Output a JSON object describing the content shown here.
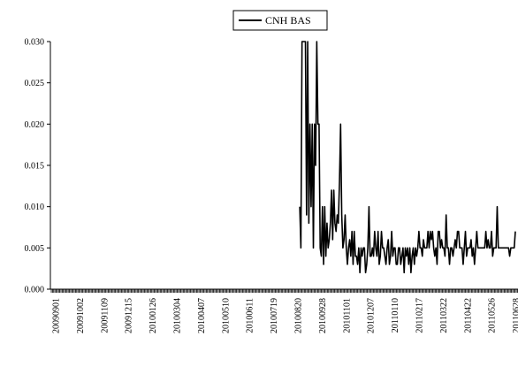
{
  "chart_data": {
    "type": "line",
    "title": "",
    "xlabel": "",
    "ylabel": "",
    "ylim": [
      0,
      0.03
    ],
    "y_ticks": [
      "0.000",
      "0.005",
      "0.010",
      "0.015",
      "0.020",
      "0.025",
      "0.030"
    ],
    "x_tick_labels": [
      "20090901",
      "20091002",
      "20091109",
      "20091215",
      "20100126",
      "20100304",
      "20100407",
      "20100510",
      "20100611",
      "20100719",
      "20100820",
      "20100928",
      "20101101",
      "20101207",
      "20110110",
      "20110217",
      "20110322",
      "20110422",
      "20110526",
      "20110628"
    ],
    "grid": false,
    "legend_position": "top-center",
    "series": [
      {
        "name": "CNH BAS",
        "color": "#000000",
        "start_date": "20100823",
        "values": [
          0.01,
          0.005,
          0.03,
          0.03,
          0.03,
          0.03,
          0.009,
          0.03,
          0.008,
          0.02,
          0.01,
          0.02,
          0.005,
          0.02,
          0.015,
          0.03,
          0.02,
          0.02,
          0.005,
          0.004,
          0.01,
          0.003,
          0.01,
          0.004,
          0.008,
          0.005,
          0.006,
          0.008,
          0.012,
          0.006,
          0.012,
          0.008,
          0.007,
          0.009,
          0.008,
          0.013,
          0.02,
          0.009,
          0.005,
          0.006,
          0.009,
          0.005,
          0.003,
          0.005,
          0.006,
          0.004,
          0.007,
          0.003,
          0.007,
          0.004,
          0.004,
          0.003,
          0.005,
          0.002,
          0.005,
          0.004,
          0.005,
          0.005,
          0.002,
          0.003,
          0.005,
          0.01,
          0.004,
          0.004,
          0.005,
          0.004,
          0.007,
          0.005,
          0.004,
          0.007,
          0.003,
          0.004,
          0.007,
          0.005,
          0.005,
          0.004,
          0.003,
          0.005,
          0.006,
          0.003,
          0.004,
          0.007,
          0.004,
          0.005,
          0.005,
          0.003,
          0.003,
          0.005,
          0.005,
          0.003,
          0.004,
          0.005,
          0.002,
          0.005,
          0.004,
          0.005,
          0.003,
          0.005,
          0.002,
          0.004,
          0.005,
          0.003,
          0.005,
          0.004,
          0.005,
          0.007,
          0.005,
          0.005,
          0.004,
          0.006,
          0.005,
          0.005,
          0.005,
          0.007,
          0.005,
          0.007,
          0.006,
          0.007,
          0.005,
          0.004,
          0.005,
          0.003,
          0.007,
          0.007,
          0.005,
          0.006,
          0.005,
          0.005,
          0.004,
          0.009,
          0.005,
          0.005,
          0.003,
          0.005,
          0.005,
          0.004,
          0.005,
          0.006,
          0.005,
          0.007,
          0.007,
          0.005,
          0.005,
          0.005,
          0.003,
          0.005,
          0.007,
          0.004,
          0.005,
          0.005,
          0.005,
          0.006,
          0.004,
          0.005,
          0.003,
          0.005,
          0.007,
          0.005,
          0.005,
          0.005,
          0.005,
          0.005,
          0.005,
          0.005,
          0.007,
          0.005,
          0.006,
          0.005,
          0.005,
          0.007,
          0.004,
          0.005,
          0.005,
          0.005,
          0.01,
          0.005,
          0.005,
          0.005,
          0.005,
          0.005,
          0.005,
          0.005,
          0.005,
          0.005,
          0.005,
          0.004,
          0.005,
          0.005,
          0.005,
          0.005,
          0.007
        ]
      }
    ]
  }
}
